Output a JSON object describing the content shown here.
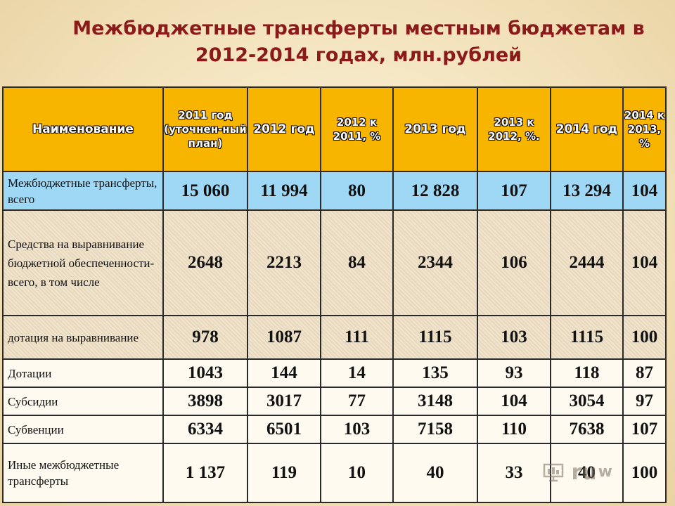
{
  "title": {
    "line1": "Межбюджетные трансферты  местным бюджетам в",
    "line2": "2012-2014 годах, млн.рублей"
  },
  "table": {
    "headers": [
      "Наименование",
      "2011 год (уточнен-ный план)",
      "2012 год",
      "2012 к 2011, %",
      "2013 год",
      "2013  к 2012, %.",
      "2014 год",
      "2014 к 2013, %"
    ],
    "rows": [
      {
        "name": "Межбюджетные трансферты, всего",
        "values": [
          "15 060",
          "11 994",
          "80",
          "12 828",
          "107",
          "13 294",
          "104"
        ]
      },
      {
        "name": "Средства на выравнивание бюджетной обеспеченности-всего, в том числе",
        "values": [
          "2648",
          "2213",
          "84",
          "2344",
          "106",
          "2444",
          "104"
        ]
      },
      {
        "name": "дотация на выравнивание",
        "values": [
          "978",
          "1087",
          "111",
          "1115",
          "103",
          "1115",
          "100"
        ]
      },
      {
        "name": "Дотации",
        "values": [
          "1043",
          "144",
          "14",
          "135",
          "93",
          "118",
          "87"
        ]
      },
      {
        "name": "Субсидии",
        "values": [
          "3898",
          "3017",
          "77",
          "3148",
          "104",
          "3054",
          "97"
        ]
      },
      {
        "name": "Субвенции",
        "values": [
          "6334",
          "6501",
          "103",
          "7158",
          "110",
          "7638",
          "107"
        ]
      },
      {
        "name": "Иные межбюджетные трансферты",
        "values": [
          "1 137",
          "119",
          "10",
          "40",
          "33",
          "40",
          "100"
        ]
      }
    ]
  },
  "watermark": {
    "icon": "presentation-icon",
    "text": "ru",
    "mark": "w"
  }
}
